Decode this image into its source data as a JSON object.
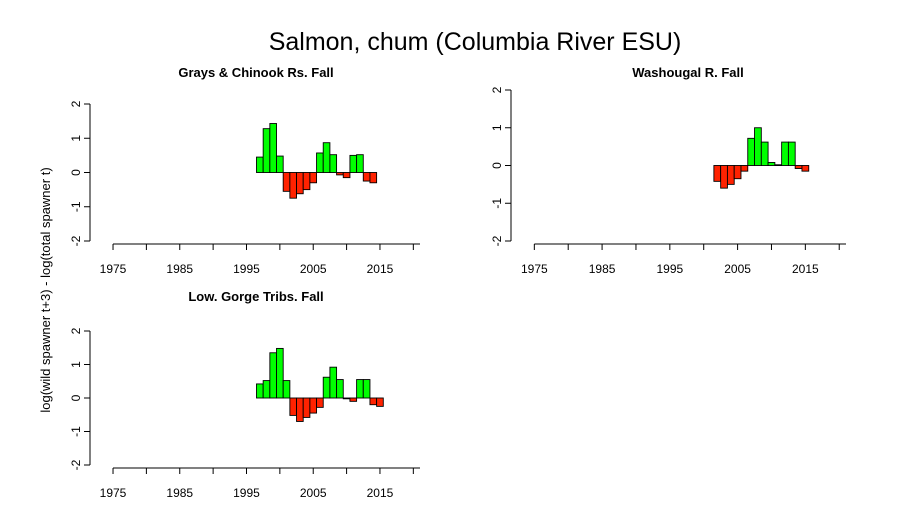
{
  "figure": {
    "title": "Salmon, chum (Columbia River ESU)",
    "ylabel": "log(wild spawner t+3) - log(total spawner t)",
    "colors": {
      "positive": "#00ff00",
      "negative": "#ff2200",
      "outline": "#000000"
    }
  },
  "chart_data": [
    {
      "type": "bar",
      "title": "Grays & Chinook Rs. Fall",
      "xlabel": "",
      "ylabel": "log(wild spawner t+3) - log(total spawner t)",
      "x_ticks": [
        "1975",
        "1985",
        "1995",
        "2005",
        "2015"
      ],
      "y_ticks": [
        "-2",
        "-1",
        "0",
        "1",
        "2"
      ],
      "xlim": [
        1972,
        2021
      ],
      "ylim": [
        -2,
        2
      ],
      "x": [
        1997,
        1998,
        1999,
        2000,
        2001,
        2002,
        2003,
        2004,
        2005,
        2006,
        2007,
        2008,
        2009,
        2010,
        2011,
        2012,
        2013,
        2014,
        2015
      ],
      "values": [
        0.45,
        1.28,
        1.43,
        0.48,
        -0.55,
        -0.75,
        -0.62,
        -0.5,
        -0.3,
        0.57,
        0.87,
        0.52,
        -0.07,
        -0.15,
        0.5,
        0.52,
        -0.25,
        -0.3,
        0
      ]
    },
    {
      "type": "bar",
      "title": "Washougal R. Fall",
      "xlabel": "",
      "ylabel": "",
      "x_ticks": [
        "1975",
        "1985",
        "1995",
        "2005",
        "2015"
      ],
      "y_ticks": [
        "-2",
        "-1",
        "0",
        "1",
        "2"
      ],
      "xlim": [
        1972,
        2021
      ],
      "ylim": [
        -2,
        2
      ],
      "x": [
        2002,
        2003,
        2004,
        2005,
        2006,
        2007,
        2008,
        2009,
        2010,
        2011,
        2012,
        2013,
        2014,
        2015
      ],
      "values": [
        -0.42,
        -0.6,
        -0.5,
        -0.35,
        -0.15,
        0.72,
        1.0,
        0.62,
        0.08,
        0.02,
        0.62,
        0.62,
        -0.08,
        -0.15
      ]
    },
    {
      "type": "bar",
      "title": "Low. Gorge Tribs. Fall",
      "xlabel": "",
      "ylabel": "",
      "x_ticks": [
        "1975",
        "1985",
        "1995",
        "2005",
        "2015"
      ],
      "y_ticks": [
        "-2",
        "-1",
        "0",
        "1",
        "2"
      ],
      "xlim": [
        1972,
        2021
      ],
      "ylim": [
        -2,
        2
      ],
      "x": [
        1997,
        1998,
        1999,
        2000,
        2001,
        2002,
        2003,
        2004,
        2005,
        2006,
        2007,
        2008,
        2009,
        2010,
        2011,
        2012,
        2013,
        2014,
        2015
      ],
      "values": [
        0.42,
        0.52,
        1.35,
        1.48,
        0.52,
        -0.52,
        -0.7,
        -0.58,
        -0.45,
        -0.28,
        0.62,
        0.92,
        0.55,
        -0.02,
        -0.1,
        0.55,
        0.55,
        -0.2,
        -0.25
      ]
    }
  ]
}
